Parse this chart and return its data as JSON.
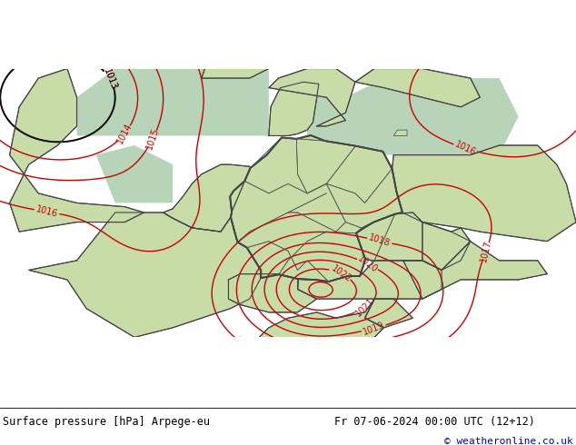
{
  "title_left": "Surface pressure [hPa] Arpege-eu",
  "title_right": "Fr 07-06-2024 00:00 UTC (12+12)",
  "watermark": "© weatheronline.co.uk",
  "bg_color": "#c8dca8",
  "border_color": "#555555",
  "contour_color_red": "#cc0000",
  "contour_color_black": "#111111",
  "label_fontsize": 7,
  "title_fontsize": 9,
  "watermark_color": "#0000cc",
  "fig_width": 6.34,
  "fig_height": 4.9,
  "dpi": 100
}
